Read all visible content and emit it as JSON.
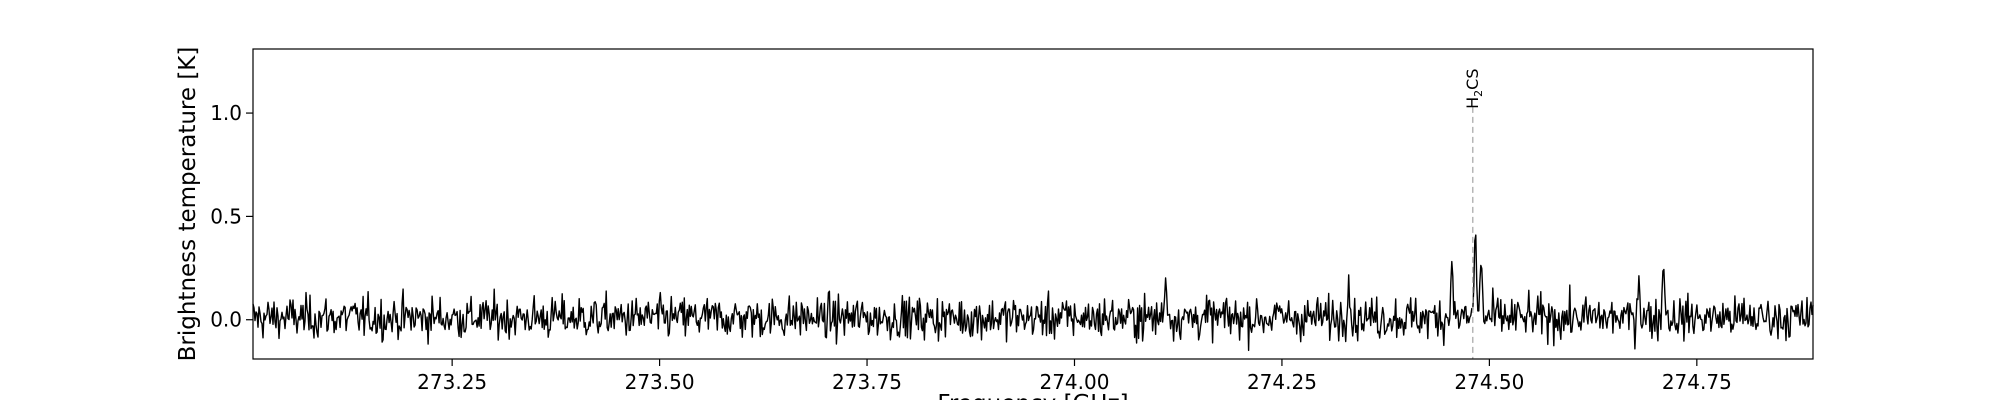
{
  "chart_data": {
    "type": "line",
    "xlabel": "Frequency [GHz]",
    "ylabel": "Brightness temperature [K]",
    "xlim": [
      273.01,
      274.89
    ],
    "ylim": [
      -0.19,
      1.31
    ],
    "xticks": [
      273.25,
      273.5,
      273.75,
      274.0,
      274.25,
      274.5,
      274.75
    ],
    "xtick_labels": [
      "273.25",
      "273.50",
      "273.75",
      "274.00",
      "274.25",
      "274.50",
      "274.75"
    ],
    "yticks": [
      0.0,
      0.5,
      1.0
    ],
    "ytick_labels": [
      "0.0",
      "0.5",
      "1.0"
    ],
    "grid": false,
    "legend": "none",
    "series": [
      {
        "color": "#000000",
        "noise_rms_K": 0.05,
        "x_start": 273.01,
        "x_end": 274.89,
        "features": [
          {
            "x": 274.455,
            "y": 0.33
          },
          {
            "x": 274.483,
            "y": 0.45
          },
          {
            "x": 274.49,
            "y": 0.3
          },
          {
            "x": 274.33,
            "y": 0.24
          },
          {
            "x": 274.11,
            "y": 0.24
          },
          {
            "x": 274.71,
            "y": 0.32
          },
          {
            "x": 274.68,
            "y": 0.23
          }
        ]
      }
    ],
    "line_markers": [
      {
        "x": 274.48,
        "label_main": "H",
        "label_sub": "2",
        "label_tail": "CS",
        "color": "#aaaaaa",
        "line_top": 1.03
      }
    ]
  }
}
